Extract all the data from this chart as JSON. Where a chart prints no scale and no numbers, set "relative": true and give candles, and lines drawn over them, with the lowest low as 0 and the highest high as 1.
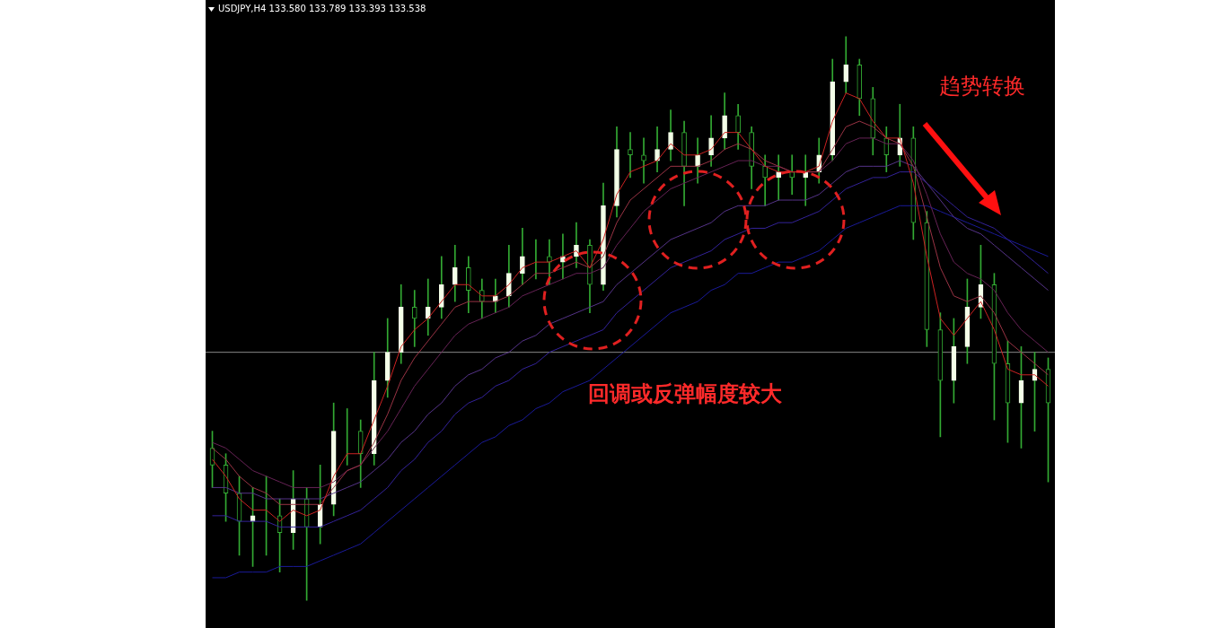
{
  "chart_data": {
    "type": "candlestick",
    "relative": true,
    "legend": false,
    "categories": [
      null,
      null,
      null,
      null,
      null,
      null,
      null,
      null,
      null,
      null,
      null,
      null,
      null,
      null,
      null,
      null,
      null,
      null,
      null,
      null,
      null,
      null,
      null,
      null,
      null,
      null,
      null,
      null,
      null,
      null,
      null,
      null,
      null,
      null,
      null,
      null,
      null,
      null,
      null,
      null,
      null,
      null,
      null,
      null,
      null,
      null,
      null,
      null,
      null,
      null,
      null,
      null,
      null,
      null,
      null,
      null,
      null,
      null,
      null,
      null,
      null,
      null,
      null
    ],
    "ohlc": [
      [
        0.27,
        0.3,
        0.2,
        0.24
      ],
      [
        0.24,
        0.26,
        0.14,
        0.19
      ],
      [
        0.19,
        0.22,
        0.08,
        0.14
      ],
      [
        0.14,
        0.2,
        0.06,
        0.15
      ],
      [
        0.15,
        0.22,
        0.08,
        0.15
      ],
      [
        0.15,
        0.18,
        0.05,
        0.12
      ],
      [
        0.12,
        0.23,
        0.09,
        0.18
      ],
      [
        0.18,
        0.2,
        0.0,
        0.13
      ],
      [
        0.13,
        0.24,
        0.1,
        0.17
      ],
      [
        0.17,
        0.35,
        0.15,
        0.3
      ],
      [
        0.3,
        0.34,
        0.24,
        0.3
      ],
      [
        0.3,
        0.32,
        0.2,
        0.26
      ],
      [
        0.26,
        0.44,
        0.24,
        0.39
      ],
      [
        0.39,
        0.5,
        0.36,
        0.44
      ],
      [
        0.44,
        0.56,
        0.42,
        0.52
      ],
      [
        0.52,
        0.55,
        0.45,
        0.5
      ],
      [
        0.5,
        0.57,
        0.47,
        0.52
      ],
      [
        0.52,
        0.61,
        0.5,
        0.56
      ],
      [
        0.56,
        0.63,
        0.53,
        0.59
      ],
      [
        0.59,
        0.61,
        0.51,
        0.55
      ],
      [
        0.55,
        0.57,
        0.5,
        0.53
      ],
      [
        0.53,
        0.57,
        0.51,
        0.54
      ],
      [
        0.54,
        0.63,
        0.52,
        0.58
      ],
      [
        0.58,
        0.66,
        0.56,
        0.61
      ],
      [
        0.61,
        0.64,
        0.57,
        0.61
      ],
      [
        0.61,
        0.64,
        0.56,
        0.6
      ],
      [
        0.6,
        0.65,
        0.57,
        0.61
      ],
      [
        0.61,
        0.67,
        0.59,
        0.63
      ],
      [
        0.63,
        0.64,
        0.51,
        0.56
      ],
      [
        0.56,
        0.74,
        0.55,
        0.7
      ],
      [
        0.7,
        0.84,
        0.68,
        0.8
      ],
      [
        0.8,
        0.83,
        0.75,
        0.79
      ],
      [
        0.79,
        0.82,
        0.74,
        0.78
      ],
      [
        0.78,
        0.84,
        0.76,
        0.8
      ],
      [
        0.8,
        0.87,
        0.78,
        0.83
      ],
      [
        0.83,
        0.85,
        0.7,
        0.77
      ],
      [
        0.77,
        0.82,
        0.74,
        0.79
      ],
      [
        0.79,
        0.86,
        0.77,
        0.82
      ],
      [
        0.82,
        0.9,
        0.8,
        0.86
      ],
      [
        0.86,
        0.88,
        0.8,
        0.83
      ],
      [
        0.83,
        0.84,
        0.73,
        0.77
      ],
      [
        0.77,
        0.79,
        0.7,
        0.75
      ],
      [
        0.75,
        0.79,
        0.71,
        0.76
      ],
      [
        0.76,
        0.79,
        0.72,
        0.75
      ],
      [
        0.75,
        0.79,
        0.7,
        0.76
      ],
      [
        0.76,
        0.82,
        0.74,
        0.79
      ],
      [
        0.79,
        0.96,
        0.78,
        0.92
      ],
      [
        0.92,
        1.0,
        0.9,
        0.95
      ],
      [
        0.95,
        0.96,
        0.86,
        0.89
      ],
      [
        0.89,
        0.91,
        0.79,
        0.82
      ],
      [
        0.82,
        0.84,
        0.76,
        0.79
      ],
      [
        0.79,
        0.88,
        0.77,
        0.82
      ],
      [
        0.82,
        0.84,
        0.64,
        0.67
      ],
      [
        0.67,
        0.69,
        0.45,
        0.48
      ],
      [
        0.48,
        0.51,
        0.29,
        0.39
      ],
      [
        0.39,
        0.5,
        0.35,
        0.45
      ],
      [
        0.45,
        0.57,
        0.42,
        0.52
      ],
      [
        0.52,
        0.63,
        0.5,
        0.56
      ],
      [
        0.56,
        0.58,
        0.32,
        0.42
      ],
      [
        0.42,
        0.46,
        0.28,
        0.35
      ],
      [
        0.35,
        0.45,
        0.27,
        0.39
      ],
      [
        0.39,
        0.44,
        0.3,
        0.41
      ],
      [
        0.41,
        0.43,
        0.21,
        0.35
      ]
    ],
    "color": "#33aa33",
    "colors": [
      "#33aa33",
      "#33aa33",
      "#33aa33",
      "#f4ffe8",
      "#f4ffe8",
      "#33aa33",
      "#f4ffe8",
      "#33aa33",
      "#f4ffe8",
      "#f4ffe8",
      "#f4ffe8",
      "#33aa33",
      "#f4ffe8",
      "#f4ffe8",
      "#f4ffe8",
      "#33aa33",
      "#f4ffe8",
      "#f4ffe8",
      "#f4ffe8",
      "#33aa33",
      "#33aa33",
      "#f4ffe8",
      "#f4ffe8",
      "#f4ffe8",
      "#f4ffe8",
      "#33aa33",
      "#f4ffe8",
      "#f4ffe8",
      "#33aa33",
      "#f4ffe8",
      "#f4ffe8",
      "#33aa33",
      "#33aa33",
      "#f4ffe8",
      "#f4ffe8",
      "#33aa33",
      "#f4ffe8",
      "#f4ffe8",
      "#f4ffe8",
      "#33aa33",
      "#33aa33",
      "#33aa33",
      "#f4ffe8",
      "#33aa33",
      "#f4ffe8",
      "#f4ffe8",
      "#f4ffe8",
      "#f4ffe8",
      "#33aa33",
      "#33aa33",
      "#33aa33",
      "#f4ffe8",
      "#33aa33",
      "#33aa33",
      "#33aa33",
      "#f4ffe8",
      "#f4ffe8",
      "#f4ffe8",
      "#33aa33",
      "#33aa33",
      "#f4ffe8",
      "#f4ffe8",
      "#33aa33"
    ],
    "series": [
      {
        "type": "line",
        "color": "#cc2222",
        "values": [
          0.25,
          0.22,
          0.18,
          0.16,
          0.16,
          0.14,
          0.16,
          0.15,
          0.16,
          0.22,
          0.26,
          0.26,
          0.32,
          0.38,
          0.45,
          0.48,
          0.5,
          0.53,
          0.56,
          0.56,
          0.54,
          0.54,
          0.56,
          0.59,
          0.6,
          0.6,
          0.61,
          0.62,
          0.59,
          0.64,
          0.72,
          0.76,
          0.77,
          0.78,
          0.81,
          0.79,
          0.79,
          0.8,
          0.83,
          0.83,
          0.8,
          0.77,
          0.76,
          0.76,
          0.76,
          0.77,
          0.85,
          0.9,
          0.89,
          0.85,
          0.82,
          0.82,
          0.74,
          0.61,
          0.5,
          0.47,
          0.5,
          0.53,
          0.48,
          0.41,
          0.4,
          0.4,
          0.38
        ]
      },
      {
        "type": "line",
        "color": "#993344",
        "values": [
          0.27,
          0.25,
          0.22,
          0.2,
          0.19,
          0.17,
          0.17,
          0.17,
          0.17,
          0.2,
          0.23,
          0.24,
          0.28,
          0.33,
          0.39,
          0.43,
          0.46,
          0.49,
          0.52,
          0.53,
          0.53,
          0.53,
          0.54,
          0.56,
          0.58,
          0.58,
          0.59,
          0.6,
          0.59,
          0.61,
          0.67,
          0.71,
          0.73,
          0.75,
          0.77,
          0.77,
          0.77,
          0.78,
          0.8,
          0.81,
          0.8,
          0.78,
          0.77,
          0.76,
          0.76,
          0.76,
          0.8,
          0.84,
          0.85,
          0.84,
          0.82,
          0.81,
          0.77,
          0.68,
          0.59,
          0.54,
          0.53,
          0.54,
          0.51,
          0.46,
          0.44,
          0.42,
          0.4
        ]
      },
      {
        "type": "line",
        "color": "#662255",
        "values": [
          0.28,
          0.27,
          0.25,
          0.23,
          0.22,
          0.21,
          0.2,
          0.2,
          0.2,
          0.21,
          0.23,
          0.24,
          0.27,
          0.3,
          0.34,
          0.38,
          0.41,
          0.44,
          0.47,
          0.49,
          0.5,
          0.51,
          0.52,
          0.54,
          0.55,
          0.56,
          0.57,
          0.58,
          0.58,
          0.59,
          0.63,
          0.66,
          0.69,
          0.71,
          0.73,
          0.74,
          0.75,
          0.76,
          0.77,
          0.78,
          0.78,
          0.77,
          0.77,
          0.76,
          0.76,
          0.76,
          0.78,
          0.81,
          0.82,
          0.82,
          0.81,
          0.81,
          0.78,
          0.72,
          0.65,
          0.6,
          0.58,
          0.57,
          0.55,
          0.51,
          0.48,
          0.46,
          0.44
        ]
      },
      {
        "type": "line",
        "color": "#553388",
        "values": [
          0.2,
          0.2,
          0.19,
          0.19,
          0.18,
          0.18,
          0.18,
          0.18,
          0.18,
          0.19,
          0.2,
          0.21,
          0.23,
          0.25,
          0.28,
          0.3,
          0.33,
          0.35,
          0.38,
          0.4,
          0.41,
          0.43,
          0.44,
          0.46,
          0.47,
          0.49,
          0.5,
          0.51,
          0.52,
          0.53,
          0.56,
          0.58,
          0.6,
          0.62,
          0.64,
          0.65,
          0.66,
          0.67,
          0.69,
          0.7,
          0.7,
          0.7,
          0.71,
          0.71,
          0.71,
          0.72,
          0.74,
          0.76,
          0.77,
          0.77,
          0.77,
          0.78,
          0.77,
          0.74,
          0.71,
          0.68,
          0.66,
          0.65,
          0.63,
          0.61,
          0.59,
          0.57,
          0.55
        ]
      },
      {
        "type": "line",
        "color": "#332299",
        "values": [
          0.15,
          0.15,
          0.14,
          0.14,
          0.14,
          0.13,
          0.13,
          0.13,
          0.13,
          0.14,
          0.15,
          0.16,
          0.18,
          0.2,
          0.23,
          0.25,
          0.28,
          0.3,
          0.33,
          0.35,
          0.36,
          0.38,
          0.39,
          0.41,
          0.42,
          0.44,
          0.45,
          0.46,
          0.47,
          0.48,
          0.51,
          0.53,
          0.55,
          0.57,
          0.59,
          0.6,
          0.61,
          0.62,
          0.64,
          0.65,
          0.66,
          0.66,
          0.67,
          0.67,
          0.68,
          0.69,
          0.71,
          0.73,
          0.74,
          0.75,
          0.75,
          0.76,
          0.76,
          0.74,
          0.72,
          0.7,
          0.68,
          0.67,
          0.66,
          0.64,
          0.62,
          0.6,
          0.58
        ]
      },
      {
        "type": "line",
        "color": "#1a1a99",
        "values": [
          0.04,
          0.04,
          0.05,
          0.05,
          0.05,
          0.06,
          0.06,
          0.06,
          0.07,
          0.08,
          0.09,
          0.1,
          0.12,
          0.14,
          0.16,
          0.18,
          0.2,
          0.22,
          0.24,
          0.26,
          0.28,
          0.29,
          0.31,
          0.32,
          0.34,
          0.35,
          0.37,
          0.38,
          0.39,
          0.41,
          0.43,
          0.45,
          0.47,
          0.49,
          0.51,
          0.52,
          0.53,
          0.55,
          0.56,
          0.58,
          0.58,
          0.59,
          0.6,
          0.6,
          0.61,
          0.62,
          0.64,
          0.66,
          0.67,
          0.68,
          0.69,
          0.7,
          0.7,
          0.7,
          0.69,
          0.68,
          0.67,
          0.66,
          0.65,
          0.64,
          0.63,
          0.62,
          0.61
        ]
      }
    ],
    "ref_lines": [
      {
        "axis": "y",
        "value": 0.44,
        "color": "#888888"
      }
    ],
    "annotations": [
      "USDJPY,H4  133.580 133.789 133.393 133.538",
      "趋势转换",
      "回调或反弹幅度较大"
    ]
  }
}
